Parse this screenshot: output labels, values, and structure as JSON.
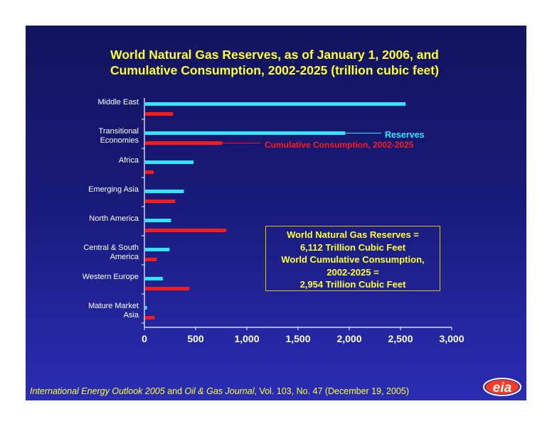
{
  "title_line1": "World Natural Gas Reserves, as of January 1, 2006, and",
  "title_line2": "Cumulative Consumption, 2002-2025 (trillion cubic feet)",
  "chart_data": {
    "type": "bar",
    "orientation": "horizontal",
    "categories": [
      [
        "Middle East"
      ],
      [
        "Transitional",
        "Economies"
      ],
      [
        "Africa"
      ],
      [
        "Emerging Asia"
      ],
      [
        "North America"
      ],
      [
        "Central & South",
        "America"
      ],
      [
        "Western Europe"
      ],
      [
        "Mature Market",
        "Asia"
      ]
    ],
    "series": [
      {
        "name": "Reserves",
        "color": "#33e6ff",
        "values": [
          2550,
          1960,
          480,
          385,
          260,
          245,
          180,
          25
        ]
      },
      {
        "name": "Cumulative Consumption, 2002-2025",
        "color": "#ff1a1a",
        "values": [
          280,
          760,
          90,
          300,
          800,
          120,
          440,
          100
        ]
      }
    ],
    "xlim": [
      0,
      3000
    ],
    "xticks": [
      "0",
      "500",
      "1,000",
      "1,500",
      "2,000",
      "2,500",
      "3,000"
    ],
    "xlabel": "",
    "ylabel": "",
    "grid": false
  },
  "infobox_lines": [
    "World Natural Gas Reserves =",
    "6,112 Trillion Cubic Feet",
    "World Cumulative Consumption,",
    "2002-2025 =",
    "2,954 Trillion Cubic Feet"
  ],
  "source": {
    "part1": "International Energy Outlook 2005",
    "part2": " and ",
    "part3": "Oil & Gas Journal",
    "part4": ", Vol. 103, No. 47 (December 19, 2005)"
  },
  "logo_text": "eia",
  "colors": {
    "title": "#ffff33",
    "reserves": "#33e6ff",
    "consumption": "#ff1a1a",
    "infobox_border": "#d8c800"
  }
}
